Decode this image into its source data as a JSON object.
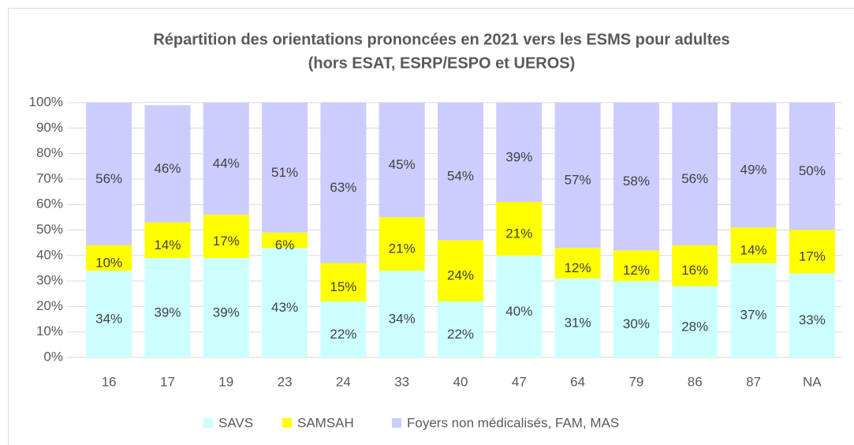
{
  "chart_data": {
    "type": "stacked_bar",
    "title": "Répartition des orientations prononcées en 2021 vers les ESMS pour adultes",
    "subtitle": "(hors ESAT, ESRP/ESPO et UEROS)",
    "categories": [
      "16",
      "17",
      "19",
      "23",
      "24",
      "33",
      "40",
      "47",
      "64",
      "79",
      "86",
      "87",
      "NA"
    ],
    "series": [
      {
        "name": "SAVS",
        "color": "#ccffff",
        "values": [
          34,
          39,
          39,
          43,
          22,
          34,
          22,
          40,
          31,
          30,
          28,
          37,
          33
        ],
        "value_labels": [
          "34%",
          "39%",
          "39%",
          "43%",
          "22%",
          "34%",
          "22%",
          "40%",
          "31%",
          "30%",
          "28%",
          "37%",
          "33%"
        ]
      },
      {
        "name": "SAMSAH",
        "color": "#ffff00",
        "values": [
          10,
          14,
          17,
          6,
          15,
          21,
          24,
          21,
          12,
          12,
          16,
          14,
          17
        ],
        "value_labels": [
          "10%",
          "14%",
          "17%",
          "6%",
          "15%",
          "21%",
          "24%",
          "21%",
          "12%",
          "12%",
          "16%",
          "14%",
          "17%"
        ]
      },
      {
        "name": "Foyers non médicalisés, FAM, MAS",
        "color": "#ccccff",
        "values": [
          56,
          46,
          44,
          51,
          63,
          45,
          54,
          39,
          57,
          58,
          56,
          49,
          50
        ],
        "value_labels": [
          "56%",
          "46%",
          "44%",
          "51%",
          "63%",
          "45%",
          "54%",
          "39%",
          "57%",
          "58%",
          "56%",
          "49%",
          "50%"
        ]
      }
    ],
    "ylim": [
      0,
      100
    ],
    "yticks": [
      {
        "value": 0,
        "label": "0%"
      },
      {
        "value": 10,
        "label": "10%"
      },
      {
        "value": 20,
        "label": "20%"
      },
      {
        "value": 30,
        "label": "30%"
      },
      {
        "value": 40,
        "label": "40%"
      },
      {
        "value": 50,
        "label": "50%"
      },
      {
        "value": 60,
        "label": "60%"
      },
      {
        "value": 70,
        "label": "70%"
      },
      {
        "value": 80,
        "label": "80%"
      },
      {
        "value": 90,
        "label": "90%"
      },
      {
        "value": 100,
        "label": "100%"
      }
    ],
    "grid": true,
    "legend": "bottom"
  }
}
